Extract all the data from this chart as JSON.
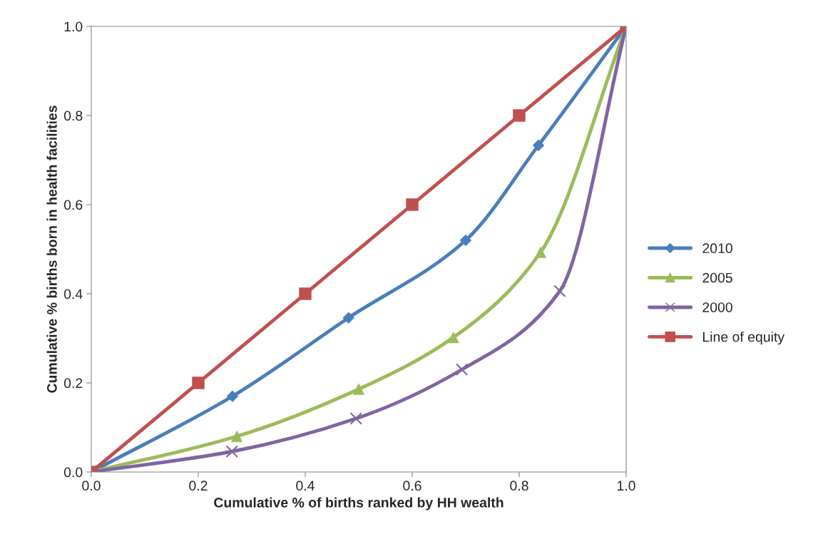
{
  "chart_data": {
    "type": "line",
    "xlabel": "Cumulative % of births ranked by HH wealth",
    "ylabel": "Cumulative % births born in health facilities",
    "series": [
      {
        "name": "2010",
        "color": "#4a7ebb",
        "marker": "diamond",
        "x": [
          0,
          0.264,
          0.481,
          0.7,
          0.836,
          1.0
        ],
        "values": [
          0,
          0.17,
          0.346,
          0.52,
          0.733,
          1.0
        ]
      },
      {
        "name": "2005",
        "color": "#9bbb59",
        "marker": "triangle",
        "x": [
          0,
          0.272,
          0.5,
          0.677,
          0.84,
          1.0
        ],
        "values": [
          0,
          0.08,
          0.186,
          0.302,
          0.493,
          1.0
        ]
      },
      {
        "name": "2000",
        "color": "#8064a2",
        "marker": "cross",
        "x": [
          0,
          0.263,
          0.495,
          0.693,
          0.876,
          1.0
        ],
        "values": [
          0,
          0.046,
          0.12,
          0.23,
          0.406,
          1.0
        ]
      },
      {
        "name": "Line of equity",
        "color": "#c0504d",
        "marker": "square",
        "x": [
          0,
          0.2,
          0.4,
          0.6,
          0.8,
          1.0
        ],
        "values": [
          0,
          0.2,
          0.4,
          0.6,
          0.8,
          1.0
        ]
      }
    ],
    "xlim": [
      0,
      1.0
    ],
    "ylim": [
      0,
      1.0
    ],
    "xticks": [
      {
        "value": 0,
        "label": "0.0"
      },
      0.2,
      0.4,
      0.6,
      0.8,
      {
        "value": 1.0,
        "label": "1.0"
      }
    ],
    "yticks": [
      {
        "value": 0,
        "label": "0.0"
      },
      0.2,
      0.4,
      0.6,
      0.8,
      {
        "value": 1.0,
        "label": "1.0"
      }
    ],
    "grid": false,
    "legend": "right",
    "line_style": "solid"
  }
}
